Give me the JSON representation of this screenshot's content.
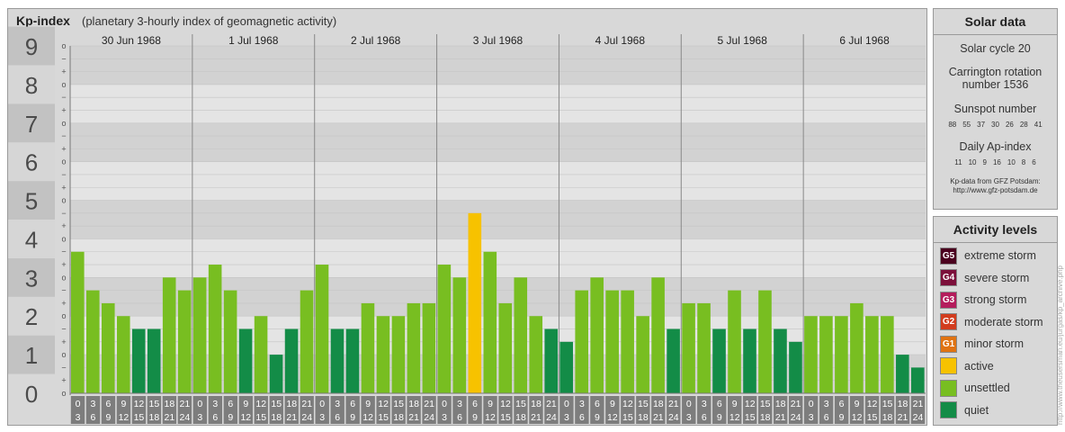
{
  "chart": {
    "title": "Kp-index",
    "subtitle": "(planetary 3-hourly index of geomagnetic activity)"
  },
  "chart_data": {
    "type": "bar",
    "title": "Kp-index",
    "subtitle": "(planetary 3-hourly index of geomagnetic activity)",
    "ylim": [
      0,
      9
    ],
    "y_ticks": [
      "0",
      "1",
      "2",
      "3",
      "4",
      "5",
      "6",
      "7",
      "8",
      "9"
    ],
    "y_minor_labels": [
      "o",
      "+",
      "−"
    ],
    "days": [
      "30 Jun 1968",
      "1 Jul 1968",
      "2 Jul 1968",
      "3 Jul 1968",
      "4 Jul 1968",
      "5 Jul 1968",
      "6 Jul 1968"
    ],
    "interval_starts": [
      "0",
      "3",
      "6",
      "9",
      "12",
      "15",
      "18",
      "21"
    ],
    "interval_ends": [
      "3",
      "6",
      "9",
      "12",
      "15",
      "18",
      "21",
      "24"
    ],
    "series": [
      {
        "values": [
          3.667,
          2.667,
          2.333,
          2.0,
          1.667,
          1.667,
          3.0,
          2.667,
          3.0,
          3.333,
          2.667,
          1.667,
          2.0,
          1.0,
          1.667,
          2.667,
          3.333,
          1.667,
          1.667,
          2.333,
          2.0,
          2.0,
          2.333,
          2.333,
          3.333,
          3.0,
          4.667,
          3.667,
          2.333,
          3.0,
          2.0,
          1.667,
          1.333,
          2.667,
          3.0,
          2.667,
          2.667,
          2.0,
          3.0,
          1.667,
          2.333,
          2.333,
          1.667,
          2.667,
          1.667,
          2.667,
          1.667,
          1.333,
          2.0,
          2.0,
          2.0,
          2.333,
          2.0,
          2.0,
          1.0,
          0.667
        ]
      }
    ],
    "color_levels": [
      {
        "min": 0,
        "max": 2,
        "level": "quiet"
      },
      {
        "min": 2,
        "max": 4,
        "level": "unsettled"
      },
      {
        "min": 4,
        "max": 5,
        "level": "active"
      },
      {
        "min": 5,
        "max": 6,
        "level": "G1"
      }
    ]
  },
  "colors": {
    "quiet": "#138c47",
    "unsettled": "#78be21",
    "active": "#f7c200",
    "G1": "#e07312",
    "G2": "#d23c1e",
    "G3": "#b41c5c",
    "G4": "#7c0f3a",
    "G5": "#4a001e"
  },
  "solar": {
    "heading": "Solar data",
    "cycle": "Solar cycle 20",
    "carrington_line1": "Carrington rotation",
    "carrington_line2": "number 1536",
    "sunspot_heading": "Sunspot number",
    "sunspot_values": [
      "88",
      "55",
      "37",
      "30",
      "26",
      "28",
      "41"
    ],
    "ap_heading": "Daily Ap-index",
    "ap_values": [
      "11",
      "10",
      "9",
      "16",
      "10",
      "8",
      "6"
    ],
    "source_line1": "Kp-data from GFZ Potsdam:",
    "source_line2": "http://www.gfz-potsdam.de"
  },
  "activity": {
    "heading": "Activity levels",
    "items": [
      {
        "code": "G5",
        "label": "extreme storm",
        "color": "#4a001e"
      },
      {
        "code": "G4",
        "label": "severe storm",
        "color": "#7c0f3a"
      },
      {
        "code": "G3",
        "label": "strong storm",
        "color": "#b41c5c"
      },
      {
        "code": "G2",
        "label": "moderate storm",
        "color": "#d23c1e"
      },
      {
        "code": "G1",
        "label": "minor storm",
        "color": "#e07312"
      },
      {
        "code": "",
        "label": "active",
        "color": "#f7c200"
      },
      {
        "code": "",
        "label": "unsettled",
        "color": "#78be21"
      },
      {
        "code": "",
        "label": "quiet",
        "color": "#138c47"
      }
    ]
  },
  "credit": "http://www.theusersman.eu/jurgas/kp_archive.php"
}
